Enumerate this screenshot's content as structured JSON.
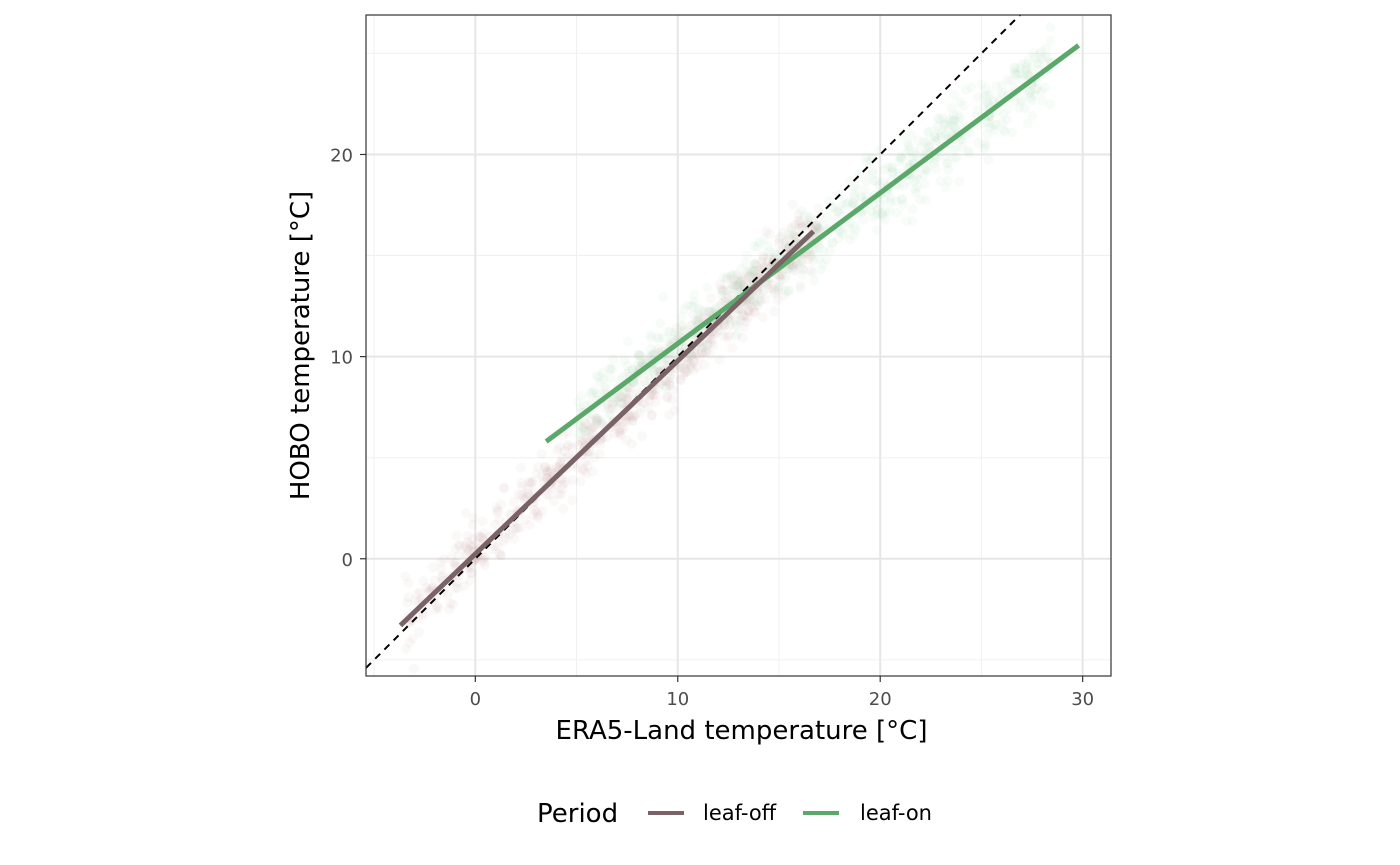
{
  "chart_data": {
    "type": "scatter",
    "xlabel": "ERA5-Land temperature [°C]",
    "ylabel": "HOBO temperature [°C]",
    "xlim": [
      -5.4,
      31.4
    ],
    "ylim": [
      -5.8,
      26.9
    ],
    "x_ticks": [
      0,
      10,
      20,
      30
    ],
    "y_ticks": [
      0,
      10,
      20
    ],
    "x_tick_labels": [
      "0",
      "10",
      "20",
      "30"
    ],
    "y_tick_labels": [
      "0",
      "10",
      "20"
    ],
    "grid": true,
    "identity_line": {
      "style": "dashed",
      "color": "#000000",
      "slope": 1,
      "intercept": 0
    },
    "legend": {
      "title": "Period",
      "position": "bottom",
      "entries": [
        "leaf-off",
        "leaf-on"
      ]
    },
    "series": [
      {
        "name": "leaf-off",
        "color": "#7a6366",
        "point_color": "#b48a8c",
        "fit_line": {
          "x": [
            -3.7,
            16.7
          ],
          "y": [
            -3.3,
            16.2
          ]
        },
        "scatter_cloud": {
          "x_range": [
            -3.5,
            17
          ],
          "center_slope": 0.955,
          "center_intercept": 0.25,
          "spread": 0.8
        }
      },
      {
        "name": "leaf-on",
        "color": "#5ba86a",
        "point_color": "#8cc795",
        "fit_line": {
          "x": [
            3.5,
            29.8
          ],
          "y": [
            5.8,
            25.4
          ]
        },
        "scatter_cloud": {
          "x_range": [
            5,
            28.5
          ],
          "center_slope": 0.745,
          "center_intercept": 3.2,
          "spread": 0.9
        }
      }
    ]
  }
}
